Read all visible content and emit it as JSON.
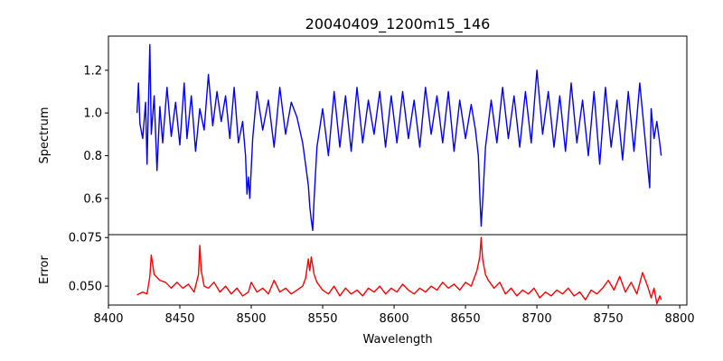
{
  "chart_data": [
    {
      "type": "line",
      "title": "20040409_1200m15_146",
      "xlabel": "",
      "ylabel": "Spectrum",
      "xlim": [
        8400,
        8805
      ],
      "ylim": [
        0.43,
        1.36
      ],
      "yticks": [
        0.6,
        0.8,
        1.0,
        1.2
      ],
      "ytick_labels": [
        "0.6",
        "0.8",
        "1.0",
        "1.2"
      ],
      "series": [
        {
          "color": "#0000ff",
          "x": [
            8420,
            8421,
            8422,
            8424,
            8426,
            8427,
            8429,
            8430,
            8432,
            8434,
            8436,
            8438,
            8441,
            8444,
            8447,
            8450,
            8453,
            8455,
            8458,
            8461,
            8464,
            8467,
            8470,
            8473,
            8476,
            8479,
            8482,
            8485,
            8488,
            8491,
            8494,
            8496,
            8497,
            8498,
            8499,
            8501,
            8504,
            8508,
            8512,
            8516,
            8520,
            8524,
            8528,
            8532,
            8536,
            8538,
            8540,
            8541,
            8542,
            8543,
            8544,
            8546,
            8550,
            8554,
            8558,
            8562,
            8566,
            8570,
            8574,
            8578,
            8582,
            8586,
            8590,
            8594,
            8598,
            8602,
            8606,
            8610,
            8614,
            8618,
            8622,
            8626,
            8630,
            8634,
            8638,
            8642,
            8646,
            8650,
            8654,
            8657,
            8659,
            8660,
            8661,
            8662,
            8664,
            8668,
            8672,
            8676,
            8680,
            8684,
            8688,
            8692,
            8696,
            8700,
            8704,
            8708,
            8712,
            8716,
            8720,
            8724,
            8728,
            8732,
            8736,
            8740,
            8744,
            8748,
            8752,
            8756,
            8760,
            8764,
            8768,
            8772,
            8776,
            8779,
            8780,
            8782,
            8784,
            8786,
            8787
          ],
          "y": [
            1.0,
            1.14,
            0.95,
            0.88,
            1.05,
            0.76,
            1.32,
            0.9,
            1.08,
            0.73,
            1.03,
            0.86,
            1.12,
            0.89,
            1.05,
            0.85,
            1.14,
            0.88,
            1.08,
            0.82,
            1.02,
            0.92,
            1.18,
            0.94,
            1.1,
            0.96,
            1.08,
            0.88,
            1.12,
            0.86,
            0.96,
            0.8,
            0.62,
            0.7,
            0.6,
            0.88,
            1.1,
            0.92,
            1.06,
            0.84,
            1.12,
            0.9,
            1.05,
            0.98,
            0.86,
            0.76,
            0.66,
            0.56,
            0.5,
            0.45,
            0.6,
            0.84,
            1.02,
            0.8,
            1.1,
            0.84,
            1.08,
            0.82,
            1.12,
            0.86,
            1.06,
            0.9,
            1.1,
            0.84,
            1.08,
            0.86,
            1.1,
            0.88,
            1.06,
            0.84,
            1.12,
            0.9,
            1.08,
            0.86,
            1.1,
            0.82,
            1.06,
            0.88,
            1.04,
            0.92,
            0.8,
            0.62,
            0.47,
            0.58,
            0.84,
            1.06,
            0.86,
            1.12,
            0.88,
            1.08,
            0.84,
            1.1,
            0.86,
            1.2,
            0.9,
            1.1,
            0.84,
            1.08,
            0.82,
            1.14,
            0.86,
            1.06,
            0.8,
            1.1,
            0.76,
            1.12,
            0.84,
            1.06,
            0.78,
            1.1,
            0.82,
            1.14,
            0.86,
            0.65,
            1.02,
            0.88,
            0.96,
            0.86,
            0.8
          ]
        }
      ]
    },
    {
      "type": "line",
      "title": "",
      "xlabel": "Wavelength",
      "ylabel": "Error",
      "xlim": [
        8400,
        8805
      ],
      "ylim": [
        0.0403,
        0.0765
      ],
      "xticks": [
        8400,
        8450,
        8500,
        8550,
        8600,
        8650,
        8700,
        8750,
        8800
      ],
      "xtick_labels": [
        "8400",
        "8450",
        "8500",
        "8550",
        "8600",
        "8650",
        "8700",
        "8750",
        "8800"
      ],
      "yticks": [
        0.05,
        0.075
      ],
      "ytick_labels": [
        "0.050",
        "0.075"
      ],
      "series": [
        {
          "color": "#ff0000",
          "x": [
            8420,
            8424,
            8427,
            8429,
            8430,
            8432,
            8436,
            8440,
            8444,
            8448,
            8452,
            8456,
            8460,
            8463,
            8464,
            8465,
            8467,
            8470,
            8474,
            8478,
            8482,
            8486,
            8490,
            8494,
            8498,
            8500,
            8504,
            8508,
            8512,
            8516,
            8520,
            8524,
            8528,
            8532,
            8536,
            8538,
            8540,
            8541,
            8542,
            8544,
            8546,
            8550,
            8554,
            8558,
            8562,
            8566,
            8570,
            8574,
            8578,
            8582,
            8586,
            8590,
            8594,
            8598,
            8602,
            8606,
            8610,
            8614,
            8618,
            8622,
            8626,
            8630,
            8634,
            8638,
            8642,
            8646,
            8650,
            8654,
            8656,
            8658,
            8660,
            8661,
            8662,
            8664,
            8666,
            8670,
            8674,
            8678,
            8682,
            8686,
            8690,
            8694,
            8698,
            8702,
            8706,
            8710,
            8714,
            8718,
            8722,
            8726,
            8730,
            8734,
            8738,
            8742,
            8746,
            8750,
            8754,
            8758,
            8762,
            8766,
            8770,
            8774,
            8778,
            8780,
            8782,
            8784,
            8786,
            8787
          ],
          "y": [
            0.0455,
            0.047,
            0.046,
            0.055,
            0.066,
            0.056,
            0.053,
            0.052,
            0.049,
            0.052,
            0.049,
            0.051,
            0.047,
            0.056,
            0.071,
            0.058,
            0.05,
            0.049,
            0.052,
            0.047,
            0.05,
            0.046,
            0.049,
            0.045,
            0.047,
            0.052,
            0.047,
            0.049,
            0.046,
            0.053,
            0.047,
            0.049,
            0.046,
            0.048,
            0.05,
            0.054,
            0.064,
            0.058,
            0.065,
            0.056,
            0.052,
            0.048,
            0.046,
            0.05,
            0.045,
            0.049,
            0.046,
            0.048,
            0.045,
            0.049,
            0.047,
            0.05,
            0.046,
            0.049,
            0.047,
            0.051,
            0.048,
            0.046,
            0.049,
            0.047,
            0.05,
            0.048,
            0.052,
            0.049,
            0.051,
            0.048,
            0.052,
            0.05,
            0.054,
            0.058,
            0.065,
            0.075,
            0.064,
            0.056,
            0.053,
            0.049,
            0.052,
            0.046,
            0.049,
            0.045,
            0.048,
            0.046,
            0.049,
            0.044,
            0.047,
            0.045,
            0.048,
            0.046,
            0.049,
            0.045,
            0.047,
            0.043,
            0.048,
            0.046,
            0.049,
            0.053,
            0.048,
            0.055,
            0.047,
            0.052,
            0.046,
            0.057,
            0.049,
            0.044,
            0.049,
            0.041,
            0.045,
            0.043
          ]
        }
      ]
    }
  ]
}
